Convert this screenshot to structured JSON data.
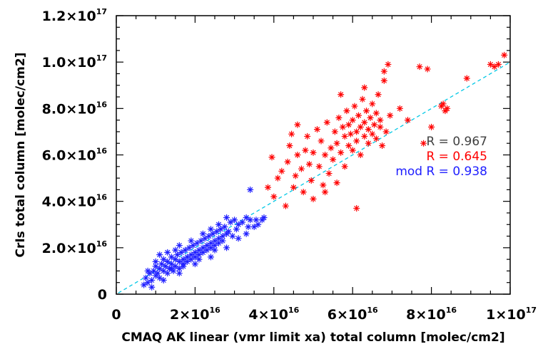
{
  "chart_data": {
    "type": "scatter",
    "xlabel": "CMAQ AK linear (vmr limit xa) total column [molec/cm2]",
    "ylabel": "CrIs total column [molec/cm2]",
    "xlim": [
      0,
      1e+17
    ],
    "ylim": [
      0,
      1.2e+17
    ],
    "x_ticks": [
      {
        "value": 0,
        "mant": "0",
        "exp": ""
      },
      {
        "value": 2e+16,
        "mant": "2×10",
        "exp": "16"
      },
      {
        "value": 4e+16,
        "mant": "4×10",
        "exp": "16"
      },
      {
        "value": 6e+16,
        "mant": "6×10",
        "exp": "16"
      },
      {
        "value": 8e+16,
        "mant": "8×10",
        "exp": "16"
      },
      {
        "value": 1e+17,
        "mant": "1×10",
        "exp": "17"
      }
    ],
    "y_ticks": [
      {
        "value": 0,
        "mant": "0",
        "exp": ""
      },
      {
        "value": 2e+16,
        "mant": "2.0×10",
        "exp": "16"
      },
      {
        "value": 4e+16,
        "mant": "4.0×10",
        "exp": "16"
      },
      {
        "value": 6e+16,
        "mant": "6.0×10",
        "exp": "16"
      },
      {
        "value": 8e+16,
        "mant": "8.0×10",
        "exp": "16"
      },
      {
        "value": 1e+17,
        "mant": "1.0×10",
        "exp": "17"
      },
      {
        "value": 1.2e+17,
        "mant": "1.2×10",
        "exp": "17"
      }
    ],
    "one_to_one_line": {
      "color": "#00c8e6",
      "style": "dashed"
    },
    "annotations": [
      {
        "text": "R = 0.967",
        "color": "#404040"
      },
      {
        "text": "R = 0.645",
        "color": "#ff0000"
      },
      {
        "text": "mod R = 0.938",
        "color": "#2020ff"
      }
    ],
    "series": [
      {
        "marker": "asterisk",
        "color": "#ff0000",
        "points": [
          [
            3.85e+16,
            4.6e+16
          ],
          [
            3.95e+16,
            5.9e+16
          ],
          [
            4e+16,
            4.2e+16
          ],
          [
            4.1e+16,
            5e+16
          ],
          [
            4.2e+16,
            5.3e+16
          ],
          [
            4.3e+16,
            3.8e+16
          ],
          [
            4.35e+16,
            5.7e+16
          ],
          [
            4.4e+16,
            6.4e+16
          ],
          [
            4.45e+16,
            6.9e+16
          ],
          [
            4.5e+16,
            4.6e+16
          ],
          [
            4.55e+16,
            5.1e+16
          ],
          [
            4.6e+16,
            6e+16
          ],
          [
            4.7e+16,
            5.4e+16
          ],
          [
            4.75e+16,
            4.4e+16
          ],
          [
            4.8e+16,
            6.2e+16
          ],
          [
            4.85e+16,
            6.8e+16
          ],
          [
            4.9e+16,
            5.6e+16
          ],
          [
            4.95e+16,
            4.9e+16
          ],
          [
            5e+16,
            6.1e+16
          ],
          [
            5e+16,
            4.1e+16
          ],
          [
            5.1e+16,
            7.1e+16
          ],
          [
            5.15e+16,
            5.5e+16
          ],
          [
            5.2e+16,
            6.6e+16
          ],
          [
            5.25e+16,
            4.7e+16
          ],
          [
            5.3e+16,
            6e+16
          ],
          [
            5.35e+16,
            7.4e+16
          ],
          [
            5.4e+16,
            5.2e+16
          ],
          [
            5.45e+16,
            6.3e+16
          ],
          [
            5.5e+16,
            5.8e+16
          ],
          [
            5.55e+16,
            7e+16
          ],
          [
            5.6e+16,
            6.5e+16
          ],
          [
            5.6e+16,
            4.8e+16
          ],
          [
            5.65e+16,
            7.6e+16
          ],
          [
            5.7e+16,
            6.1e+16
          ],
          [
            5.75e+16,
            7.2e+16
          ],
          [
            5.8e+16,
            6.8e+16
          ],
          [
            5.8e+16,
            5.5e+16
          ],
          [
            5.85e+16,
            7.9e+16
          ],
          [
            5.9e+16,
            6.4e+16
          ],
          [
            5.9e+16,
            7.3e+16
          ],
          [
            5.95e+16,
            6.9e+16
          ],
          [
            6e+16,
            7.5e+16
          ],
          [
            6e+16,
            6.2e+16
          ],
          [
            6.05e+16,
            8.1e+16
          ],
          [
            6.1e+16,
            7e+16
          ],
          [
            6.1e+16,
            6.6e+16
          ],
          [
            6.15e+16,
            7.7e+16
          ],
          [
            6.2e+16,
            7.2e+16
          ],
          [
            6.2e+16,
            6e+16
          ],
          [
            6.25e+16,
            8.4e+16
          ],
          [
            6.3e+16,
            7.4e+16
          ],
          [
            6.3e+16,
            6.8e+16
          ],
          [
            6.35e+16,
            7.9e+16
          ],
          [
            6.4e+16,
            7.1e+16
          ],
          [
            6.4e+16,
            6.5e+16
          ],
          [
            6.45e+16,
            7.6e+16
          ],
          [
            6.5e+16,
            8.2e+16
          ],
          [
            6.5e+16,
            6.9e+16
          ],
          [
            6.55e+16,
            7.3e+16
          ],
          [
            6.6e+16,
            7.8e+16
          ],
          [
            6.6e+16,
            6.7e+16
          ],
          [
            6.65e+16,
            8.6e+16
          ],
          [
            6.7e+16,
            7.2e+16
          ],
          [
            6.7e+16,
            7.5e+16
          ],
          [
            6.75e+16,
            6.4e+16
          ],
          [
            6.8e+16,
            9.2e+16
          ],
          [
            6.85e+16,
            7e+16
          ],
          [
            6.9e+16,
            9.9e+16
          ],
          [
            6.95e+16,
            7.7e+16
          ],
          [
            6.1e+16,
            3.7e+16
          ],
          [
            5.7e+16,
            8.6e+16
          ],
          [
            6.3e+16,
            8.9e+16
          ],
          [
            7.4e+16,
            7.5e+16
          ],
          [
            7.7e+16,
            9.8e+16
          ],
          [
            7.8e+16,
            6.5e+16
          ],
          [
            7.9e+16,
            9.7e+16
          ],
          [
            8e+16,
            7.2e+16
          ],
          [
            8.25e+16,
            8.1e+16
          ],
          [
            8.3e+16,
            8.2e+16
          ],
          [
            8.4e+16,
            8e+16
          ],
          [
            8.35e+16,
            7.9e+16
          ],
          [
            8.9e+16,
            9.3e+16
          ],
          [
            9.5e+16,
            9.9e+16
          ],
          [
            9.6e+16,
            9.8e+16
          ],
          [
            9.7e+16,
            9.9e+16
          ],
          [
            9.85e+16,
            1.03e+17
          ],
          [
            6.8e+16,
            9.6e+16
          ],
          [
            7.2e+16,
            8e+16
          ],
          [
            5.3e+16,
            4.4e+16
          ],
          [
            4.6e+16,
            7.3e+16
          ]
        ]
      },
      {
        "marker": "asterisk",
        "color": "#2020ff",
        "points": [
          [
            7000000000000000.0,
            4000000000000000.0
          ],
          [
            7500000000000000.0,
            7000000000000000.0
          ],
          [
            8000000000000000.0,
            5000000000000000.0
          ],
          [
            8500000000000000.0,
            9000000000000000.0
          ],
          [
            9000000000000000.0,
            6000000000000000.0
          ],
          [
            9500000000000000.0,
            1e+16
          ],
          [
            1e+16,
            8000000000000000.0
          ],
          [
            1e+16,
            1.2e+16
          ],
          [
            1.05e+16,
            9000000000000000.0
          ],
          [
            1.1e+16,
            1.1e+16
          ],
          [
            1.1e+16,
            7000000000000000.0
          ],
          [
            1.15e+16,
            1.3e+16
          ],
          [
            1.2e+16,
            1e+16
          ],
          [
            1.2e+16,
            1.5e+16
          ],
          [
            1.25e+16,
            1.2e+16
          ],
          [
            1.3e+16,
            9000000000000000.0
          ],
          [
            1.3e+16,
            1.4e+16
          ],
          [
            1.35e+16,
            1.1e+16
          ],
          [
            1.4e+16,
            1.6e+16
          ],
          [
            1.4e+16,
            1.3e+16
          ],
          [
            1.45e+16,
            1e+16
          ],
          [
            1.5e+16,
            1.5e+16
          ],
          [
            1.5e+16,
            1.2e+16
          ],
          [
            1.55e+16,
            1.7e+16
          ],
          [
            1.6e+16,
            1.4e+16
          ],
          [
            1.6e+16,
            1.1e+16
          ],
          [
            1.65e+16,
            1.8e+16
          ],
          [
            1.7e+16,
            1.5e+16
          ],
          [
            1.7e+16,
            1.3e+16
          ],
          [
            1.75e+16,
            1.9e+16
          ],
          [
            1.8e+16,
            1.6e+16
          ],
          [
            1.8e+16,
            1.4e+16
          ],
          [
            1.85e+16,
            2e+16
          ],
          [
            1.9e+16,
            1.7e+16
          ],
          [
            1.9e+16,
            1.5e+16
          ],
          [
            1.95e+16,
            2.1e+16
          ],
          [
            2e+16,
            1.8e+16
          ],
          [
            2e+16,
            1.6e+16
          ],
          [
            2.05e+16,
            2.2e+16
          ],
          [
            2.1e+16,
            1.9e+16
          ],
          [
            2.1e+16,
            1.7e+16
          ],
          [
            2.15e+16,
            2.3e+16
          ],
          [
            2.2e+16,
            2e+16
          ],
          [
            2.2e+16,
            1.8e+16
          ],
          [
            2.25e+16,
            2.4e+16
          ],
          [
            2.3e+16,
            2.1e+16
          ],
          [
            2.3e+16,
            1.9e+16
          ],
          [
            2.35e+16,
            2.5e+16
          ],
          [
            2.4e+16,
            2.2e+16
          ],
          [
            2.4e+16,
            2e+16
          ],
          [
            2.45e+16,
            2.6e+16
          ],
          [
            2.5e+16,
            2.3e+16
          ],
          [
            2.5e+16,
            2.1e+16
          ],
          [
            2.55e+16,
            2.7e+16
          ],
          [
            2.6e+16,
            2.4e+16
          ],
          [
            2.6e+16,
            2.2e+16
          ],
          [
            2.65e+16,
            2.8e+16
          ],
          [
            2.7e+16,
            2.5e+16
          ],
          [
            2.7e+16,
            2.3e+16
          ],
          [
            2.75e+16,
            2.9e+16
          ],
          [
            2.8e+16,
            2.6e+16
          ],
          [
            2.8e+16,
            3.3e+16
          ],
          [
            2.85e+16,
            2.7e+16
          ],
          [
            2.9e+16,
            3.1e+16
          ],
          [
            2.95e+16,
            2.5e+16
          ],
          [
            3e+16,
            3.2e+16
          ],
          [
            3.05e+16,
            2.8e+16
          ],
          [
            3.1e+16,
            3e+16
          ],
          [
            3.2e+16,
            3.1e+16
          ],
          [
            3.3e+16,
            3.3e+16
          ],
          [
            3.35e+16,
            2.9e+16
          ],
          [
            3.4e+16,
            3.2e+16
          ],
          [
            3.5e+16,
            2.9e+16
          ],
          [
            3.55e+16,
            3.2e+16
          ],
          [
            3.6e+16,
            3e+16
          ],
          [
            3.7e+16,
            3.2e+16
          ],
          [
            3.75e+16,
            3.3e+16
          ],
          [
            3.4e+16,
            4.5e+16
          ],
          [
            1.1e+16,
            1.7e+16
          ],
          [
            1.3e+16,
            1.8e+16
          ],
          [
            1.5e+16,
            1.9e+16
          ],
          [
            1.6e+16,
            2.1e+16
          ],
          [
            1.9e+16,
            2.3e+16
          ],
          [
            2.2e+16,
            2.6e+16
          ],
          [
            2.6e+16,
            3e+16
          ],
          [
            2.4e+16,
            2.8e+16
          ],
          [
            9000000000000000.0,
            3000000000000000.0
          ],
          [
            1.2e+16,
            6000000000000000.0
          ],
          [
            1.6e+16,
            9000000000000000.0
          ],
          [
            2e+16,
            1.3e+16
          ],
          [
            2.4e+16,
            1.6e+16
          ],
          [
            2.8e+16,
            2e+16
          ],
          [
            3.1e+16,
            2.4e+16
          ],
          [
            3.3e+16,
            2.6e+16
          ],
          [
            8000000000000000.0,
            1e+16
          ],
          [
            1e+16,
            1.4e+16
          ],
          [
            1.4e+16,
            1.1e+16
          ],
          [
            1.7e+16,
            1.2e+16
          ],
          [
            2.1e+16,
            1.5e+16
          ],
          [
            2.5e+16,
            1.9e+16
          ]
        ]
      }
    ]
  }
}
